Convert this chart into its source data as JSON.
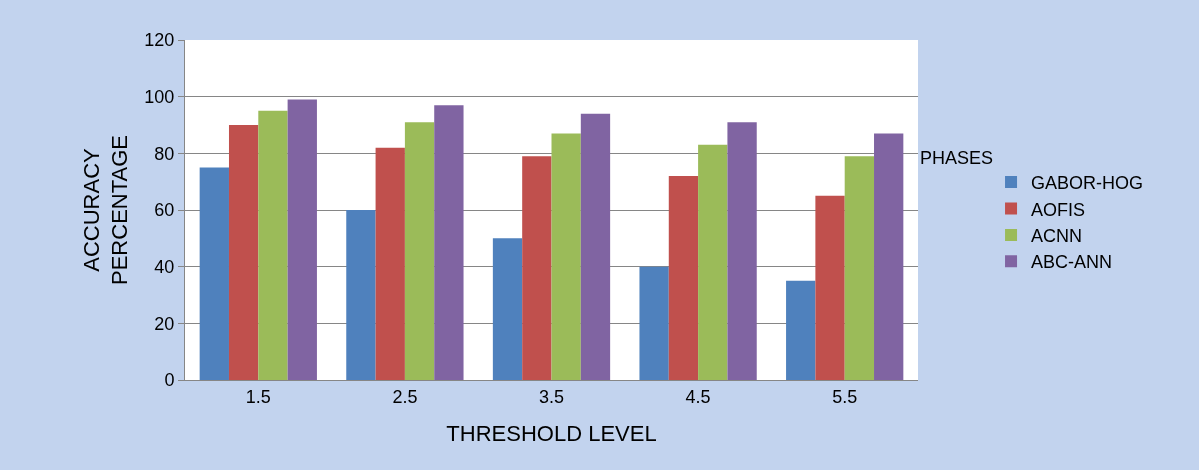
{
  "chart_data": {
    "type": "bar",
    "xlabel": "THRESHOLD LEVEL",
    "ylabel": "ACCURACY\nPERCENTAGE",
    "legend_title": "PHASES",
    "categories": [
      "1.5",
      "2.5",
      "3.5",
      "4.5",
      "5.5"
    ],
    "series": [
      {
        "name": "GABOR-HOG",
        "color": "#4f81bd",
        "values": [
          75,
          60,
          50,
          40,
          35
        ]
      },
      {
        "name": "AOFIS",
        "color": "#c0504d",
        "values": [
          90,
          82,
          79,
          72,
          65
        ]
      },
      {
        "name": "ACNN",
        "color": "#9bbb59",
        "values": [
          95,
          91,
          87,
          83,
          79
        ]
      },
      {
        "name": "ABC-ANN",
        "color": "#8064a2",
        "values": [
          99,
          97,
          94,
          91,
          87
        ]
      }
    ],
    "ylim": [
      0,
      120
    ],
    "yticks": [
      0,
      20,
      40,
      60,
      80,
      100,
      120
    ],
    "grid": "y",
    "legend": "right"
  }
}
